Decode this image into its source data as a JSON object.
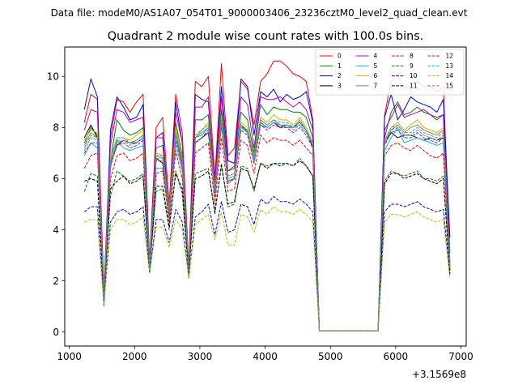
{
  "chart_data": {
    "type": "line",
    "suptitle": "Data file: modeM0/AS1A07_054T01_9000003406_23236cztM0_level2_quad_clean.evt",
    "title": "Quadrant 2 module wise count rates with 100.0s bins.",
    "xlabel": "",
    "ylabel": "",
    "x_offset_label": "+3.1569e8",
    "xlim": [
      930,
      7080
    ],
    "ylim": [
      -0.55,
      11.15
    ],
    "xticks": [
      1000,
      2000,
      3000,
      4000,
      5000,
      6000,
      7000
    ],
    "yticks": [
      0,
      2,
      4,
      6,
      8,
      10
    ],
    "grid": false,
    "legend": {
      "location": "top-right",
      "columns": 4
    },
    "x": [
      1230,
      1330,
      1430,
      1530,
      1630,
      1730,
      1830,
      1930,
      2030,
      2130,
      2230,
      2330,
      2430,
      2530,
      2630,
      2730,
      2830,
      2930,
      3030,
      3130,
      3230,
      3330,
      3430,
      3530,
      3630,
      3730,
      3830,
      3930,
      4030,
      4130,
      4230,
      4330,
      4430,
      4530,
      4630,
      4730,
      4830,
      4930,
      5030,
      5130,
      5230,
      5330,
      5430,
      5530,
      5630,
      5730,
      5830,
      5930,
      6030,
      6130,
      6230,
      6330,
      6430,
      6530,
      6630,
      6730,
      6830
    ],
    "series": [
      {
        "name": "0",
        "color": "#ff0000",
        "dash": "solid",
        "values": [
          8.2,
          9.3,
          9.1,
          1.7,
          7.6,
          9.1,
          9.0,
          8.6,
          9.0,
          9.3,
          2.8,
          8.0,
          8.4,
          5.0,
          9.3,
          7.8,
          2.6,
          9.8,
          9.6,
          10.0,
          6.0,
          10.5,
          6.9,
          7.2,
          9.8,
          9.5,
          8.1,
          9.8,
          10.1,
          10.6,
          10.6,
          10.4,
          10.1,
          10.0,
          9.8,
          8.3,
          0.05,
          0.05,
          0.05,
          0.05,
          0.05,
          0.05,
          0.05,
          0.05,
          0.05,
          0.05,
          8.5,
          9.8,
          10.1,
          9.5,
          9.7,
          9.8,
          9.6,
          9.6,
          9.4,
          9.6,
          3.1
        ]
      },
      {
        "name": "1",
        "color": "#008000",
        "dash": "solid",
        "values": [
          7.4,
          8.0,
          7.7,
          1.4,
          6.7,
          8.3,
          7.9,
          7.7,
          7.8,
          8.0,
          2.6,
          7.2,
          7.3,
          4.7,
          8.2,
          6.9,
          2.5,
          8.3,
          8.3,
          8.5,
          5.5,
          8.7,
          6.3,
          6.4,
          8.6,
          8.3,
          7.0,
          8.9,
          8.5,
          8.8,
          8.7,
          8.7,
          8.6,
          8.6,
          8.4,
          7.6,
          0.05,
          0.05,
          0.05,
          0.05,
          0.05,
          0.05,
          0.05,
          0.05,
          0.05,
          0.05,
          7.6,
          8.6,
          9.0,
          8.5,
          8.6,
          8.8,
          8.6,
          8.5,
          8.3,
          8.5,
          2.7
        ]
      },
      {
        "name": "2",
        "color": "#0000ff",
        "dash": "solid",
        "values": [
          8.7,
          9.9,
          9.2,
          1.0,
          7.9,
          9.2,
          8.8,
          8.3,
          8.4,
          8.9,
          2.6,
          7.6,
          7.8,
          4.6,
          9.0,
          7.4,
          2.4,
          9.3,
          9.1,
          9.0,
          5.8,
          9.6,
          6.7,
          6.6,
          9.9,
          9.6,
          7.7,
          9.4,
          9.2,
          9.5,
          9.0,
          9.3,
          9.1,
          9.2,
          9.4,
          8.2,
          0.05,
          0.05,
          0.05,
          0.05,
          0.05,
          0.05,
          0.05,
          0.05,
          0.05,
          0.05,
          8.4,
          9.3,
          8.3,
          8.7,
          9.2,
          9.0,
          8.9,
          8.8,
          8.6,
          9.1,
          3.7
        ]
      },
      {
        "name": "3",
        "color": "#000000",
        "dash": "solid",
        "values": [
          7.6,
          8.1,
          7.6,
          1.6,
          6.6,
          7.3,
          7.5,
          7.4,
          7.4,
          7.6,
          2.4,
          6.8,
          6.6,
          4.8,
          7.8,
          6.5,
          2.4,
          7.4,
          7.6,
          7.8,
          5.5,
          8.1,
          5.9,
          6.0,
          8.1,
          7.8,
          6.9,
          8.2,
          8.0,
          8.2,
          8.0,
          8.1,
          8.0,
          8.2,
          7.9,
          7.2,
          0.05,
          0.05,
          0.05,
          0.05,
          0.05,
          0.05,
          0.05,
          0.05,
          0.05,
          0.05,
          7.4,
          7.8,
          7.6,
          7.7,
          7.7,
          7.6,
          7.5,
          7.6,
          7.5,
          7.6,
          2.4
        ]
      },
      {
        "name": "4",
        "color": "#bf00bf",
        "dash": "solid",
        "values": [
          7.9,
          8.7,
          8.6,
          1.5,
          7.3,
          8.7,
          8.6,
          8.2,
          8.3,
          8.4,
          2.5,
          7.6,
          7.6,
          4.6,
          8.6,
          7.4,
          2.4,
          8.8,
          8.8,
          9.2,
          5.7,
          9.2,
          6.3,
          6.5,
          9.2,
          8.9,
          7.2,
          9.2,
          9.1,
          9.1,
          9.2,
          9.0,
          8.8,
          9.0,
          8.7,
          7.9,
          0.05,
          0.05,
          0.05,
          0.05,
          0.05,
          0.05,
          0.05,
          0.05,
          0.05,
          0.05,
          7.9,
          8.4,
          8.9,
          8.4,
          8.5,
          8.6,
          8.7,
          8.5,
          8.4,
          8.5,
          2.7
        ]
      },
      {
        "name": "5",
        "color": "#00bfbf",
        "dash": "solid",
        "values": [
          6.9,
          7.4,
          7.2,
          1.4,
          6.4,
          7.5,
          7.2,
          7.1,
          7.2,
          7.3,
          2.5,
          6.4,
          6.4,
          4.5,
          7.4,
          6.3,
          2.3,
          7.6,
          7.7,
          8.0,
          5.3,
          8.2,
          5.8,
          6.0,
          8.0,
          7.9,
          6.6,
          8.1,
          8.0,
          8.2,
          8.1,
          8.0,
          8.0,
          8.1,
          7.8,
          7.4,
          0.05,
          0.05,
          0.05,
          0.05,
          0.05,
          0.05,
          0.05,
          0.05,
          0.05,
          0.05,
          7.1,
          7.6,
          8.0,
          7.4,
          7.5,
          7.6,
          7.5,
          7.4,
          7.3,
          7.4,
          2.5
        ]
      },
      {
        "name": "6",
        "color": "#bfbf00",
        "dash": "solid",
        "values": [
          7.5,
          7.9,
          7.8,
          1.5,
          6.8,
          7.6,
          7.6,
          7.5,
          7.7,
          7.9,
          2.6,
          7.0,
          6.9,
          4.8,
          8.0,
          6.8,
          2.5,
          7.6,
          7.9,
          8.2,
          5.6,
          8.4,
          6.1,
          6.2,
          8.2,
          8.0,
          6.9,
          8.4,
          8.2,
          8.5,
          8.3,
          8.3,
          8.1,
          8.4,
          8.0,
          7.4,
          0.05,
          0.05,
          0.05,
          0.05,
          0.05,
          0.05,
          0.05,
          0.05,
          0.05,
          0.05,
          7.5,
          8.0,
          8.2,
          7.9,
          8.1,
          8.3,
          8.0,
          7.9,
          7.8,
          8.0,
          2.6
        ]
      },
      {
        "name": "7",
        "color": "#808080",
        "dash": "solid",
        "values": [
          7.3,
          7.8,
          7.6,
          1.5,
          6.6,
          7.4,
          7.5,
          7.4,
          7.5,
          7.7,
          2.5,
          6.9,
          6.8,
          4.7,
          7.8,
          6.7,
          2.4,
          7.6,
          7.8,
          8.0,
          5.5,
          8.2,
          6.0,
          6.1,
          8.1,
          7.9,
          6.8,
          8.3,
          8.1,
          8.3,
          8.1,
          8.1,
          8.0,
          8.3,
          7.9,
          7.3,
          0.05,
          0.05,
          0.05,
          0.05,
          0.05,
          0.05,
          0.05,
          0.05,
          0.05,
          0.05,
          7.4,
          7.9,
          8.1,
          7.8,
          8.0,
          8.1,
          7.9,
          7.8,
          7.7,
          7.9,
          2.5
        ]
      },
      {
        "name": "8",
        "color": "#ff0000",
        "dash": "dashed",
        "values": [
          6.4,
          6.9,
          7.0,
          1.3,
          6.0,
          6.9,
          7.0,
          6.7,
          6.8,
          7.0,
          2.5,
          6.2,
          6.3,
          4.3,
          7.1,
          6.0,
          2.3,
          7.0,
          7.2,
          7.4,
          5.0,
          7.6,
          5.5,
          5.6,
          7.5,
          7.3,
          6.2,
          7.7,
          7.4,
          7.6,
          7.5,
          7.5,
          7.3,
          7.5,
          7.2,
          6.9,
          0.05,
          0.05,
          0.05,
          0.05,
          0.05,
          0.05,
          0.05,
          0.05,
          0.05,
          0.05,
          6.9,
          7.3,
          7.4,
          7.2,
          7.1,
          7.3,
          7.1,
          6.9,
          6.8,
          7.0,
          2.4
        ]
      },
      {
        "name": "9",
        "color": "#008000",
        "dash": "dashed",
        "values": [
          5.5,
          6.2,
          6.1,
          1.3,
          5.3,
          6.3,
          6.1,
          5.9,
          6.0,
          6.2,
          2.4,
          5.5,
          5.6,
          4.0,
          6.3,
          5.4,
          2.2,
          6.2,
          6.3,
          6.4,
          4.6,
          6.6,
          4.9,
          5.0,
          6.5,
          6.4,
          5.5,
          6.6,
          6.5,
          6.6,
          6.6,
          6.6,
          6.5,
          6.8,
          6.5,
          6.1,
          0.05,
          0.05,
          0.05,
          0.05,
          0.05,
          0.05,
          0.05,
          0.05,
          0.05,
          0.05,
          5.9,
          6.3,
          6.2,
          6.1,
          6.2,
          6.3,
          6.0,
          6.0,
          5.9,
          6.1,
          2.3
        ]
      },
      {
        "name": "10",
        "color": "#0000ff",
        "dash": "dashed",
        "values": [
          4.7,
          4.9,
          4.9,
          1.1,
          4.3,
          4.7,
          4.8,
          4.6,
          4.7,
          4.9,
          2.3,
          4.4,
          4.4,
          3.5,
          4.8,
          4.3,
          2.1,
          4.5,
          4.7,
          5.0,
          3.8,
          5.1,
          3.9,
          4.0,
          5.0,
          4.9,
          4.2,
          5.2,
          5.0,
          5.3,
          5.1,
          5.1,
          5.0,
          5.2,
          5.0,
          4.7,
          0.05,
          0.05,
          0.05,
          0.05,
          0.05,
          0.05,
          0.05,
          0.05,
          0.05,
          0.05,
          4.7,
          5.0,
          5.0,
          4.9,
          5.0,
          5.1,
          4.9,
          4.8,
          4.7,
          4.8,
          2.2
        ]
      },
      {
        "name": "11",
        "color": "#000000",
        "dash": "dashed",
        "values": [
          5.9,
          6.0,
          5.9,
          1.4,
          5.6,
          5.9,
          6.1,
          5.8,
          5.9,
          6.1,
          2.5,
          5.7,
          5.7,
          4.1,
          6.2,
          5.6,
          2.3,
          6.0,
          6.1,
          6.3,
          4.7,
          6.5,
          5.0,
          5.1,
          6.4,
          6.3,
          5.6,
          6.6,
          6.4,
          6.6,
          6.5,
          6.6,
          6.5,
          6.7,
          6.5,
          6.1,
          0.05,
          0.05,
          0.05,
          0.05,
          0.05,
          0.05,
          0.05,
          0.05,
          0.05,
          0.05,
          5.8,
          6.2,
          6.2,
          6.0,
          6.1,
          6.2,
          6.0,
          5.9,
          5.8,
          6.0,
          2.3
        ]
      },
      {
        "name": "12",
        "color": "#bf00bf",
        "dash": "dashed",
        "values": [
          7.0,
          7.4,
          7.4,
          1.4,
          6.5,
          7.3,
          7.4,
          7.2,
          7.3,
          7.5,
          2.5,
          6.7,
          6.7,
          4.6,
          7.5,
          6.5,
          2.4,
          7.4,
          7.6,
          7.9,
          5.4,
          8.1,
          5.9,
          6.0,
          7.9,
          7.7,
          6.6,
          8.1,
          7.9,
          8.1,
          8.0,
          8.0,
          7.8,
          8.0,
          7.7,
          7.2,
          0.05,
          0.05,
          0.05,
          0.05,
          0.05,
          0.05,
          0.05,
          0.05,
          0.05,
          0.05,
          7.3,
          7.8,
          7.9,
          7.6,
          7.6,
          7.8,
          7.6,
          7.5,
          7.4,
          7.6,
          2.5
        ]
      },
      {
        "name": "13",
        "color": "#00bfbf",
        "dash": "dashed",
        "values": [
          7.1,
          7.6,
          7.5,
          1.4,
          6.6,
          7.5,
          7.5,
          7.3,
          7.4,
          7.6,
          2.5,
          6.8,
          6.8,
          4.7,
          7.6,
          6.6,
          2.4,
          7.6,
          7.8,
          8.0,
          5.5,
          8.2,
          6.0,
          6.1,
          8.0,
          7.8,
          6.7,
          8.2,
          8.0,
          8.2,
          8.1,
          8.1,
          7.9,
          8.1,
          7.8,
          7.3,
          0.05,
          0.05,
          0.05,
          0.05,
          0.05,
          0.05,
          0.05,
          0.05,
          0.05,
          0.05,
          7.4,
          7.9,
          8.0,
          7.7,
          7.7,
          7.9,
          7.7,
          7.6,
          7.5,
          7.7,
          2.5
        ]
      },
      {
        "name": "14",
        "color": "#bfbf00",
        "dash": "dashed",
        "values": [
          4.3,
          4.4,
          4.4,
          1.0,
          4.0,
          4.4,
          4.4,
          4.2,
          4.3,
          4.5,
          2.3,
          4.1,
          4.1,
          3.3,
          4.4,
          4.0,
          2.1,
          4.2,
          4.4,
          4.6,
          3.6,
          4.7,
          3.4,
          3.4,
          4.6,
          4.5,
          3.9,
          4.8,
          4.6,
          4.9,
          4.7,
          4.7,
          4.6,
          4.8,
          4.6,
          4.3,
          0.05,
          0.05,
          0.05,
          0.05,
          0.05,
          0.05,
          0.05,
          0.05,
          0.05,
          0.05,
          4.3,
          4.6,
          4.6,
          4.5,
          4.6,
          4.7,
          4.5,
          4.4,
          4.3,
          4.4,
          2.1
        ]
      },
      {
        "name": "15",
        "color": "#808080",
        "dash": "dashed",
        "values": [
          7.2,
          7.7,
          7.6,
          1.5,
          6.7,
          7.6,
          7.6,
          7.4,
          7.5,
          7.7,
          2.5,
          6.9,
          6.9,
          4.7,
          7.7,
          6.7,
          2.4,
          7.7,
          7.9,
          8.1,
          5.5,
          8.3,
          6.1,
          6.2,
          8.1,
          7.9,
          6.8,
          8.3,
          8.1,
          8.3,
          8.2,
          8.2,
          8.0,
          8.2,
          7.9,
          7.4,
          0.05,
          0.05,
          0.05,
          0.05,
          0.05,
          0.05,
          0.05,
          0.05,
          0.05,
          0.05,
          7.5,
          8.0,
          8.1,
          7.8,
          7.8,
          8.0,
          7.8,
          7.7,
          7.6,
          7.8,
          2.5
        ]
      }
    ]
  }
}
